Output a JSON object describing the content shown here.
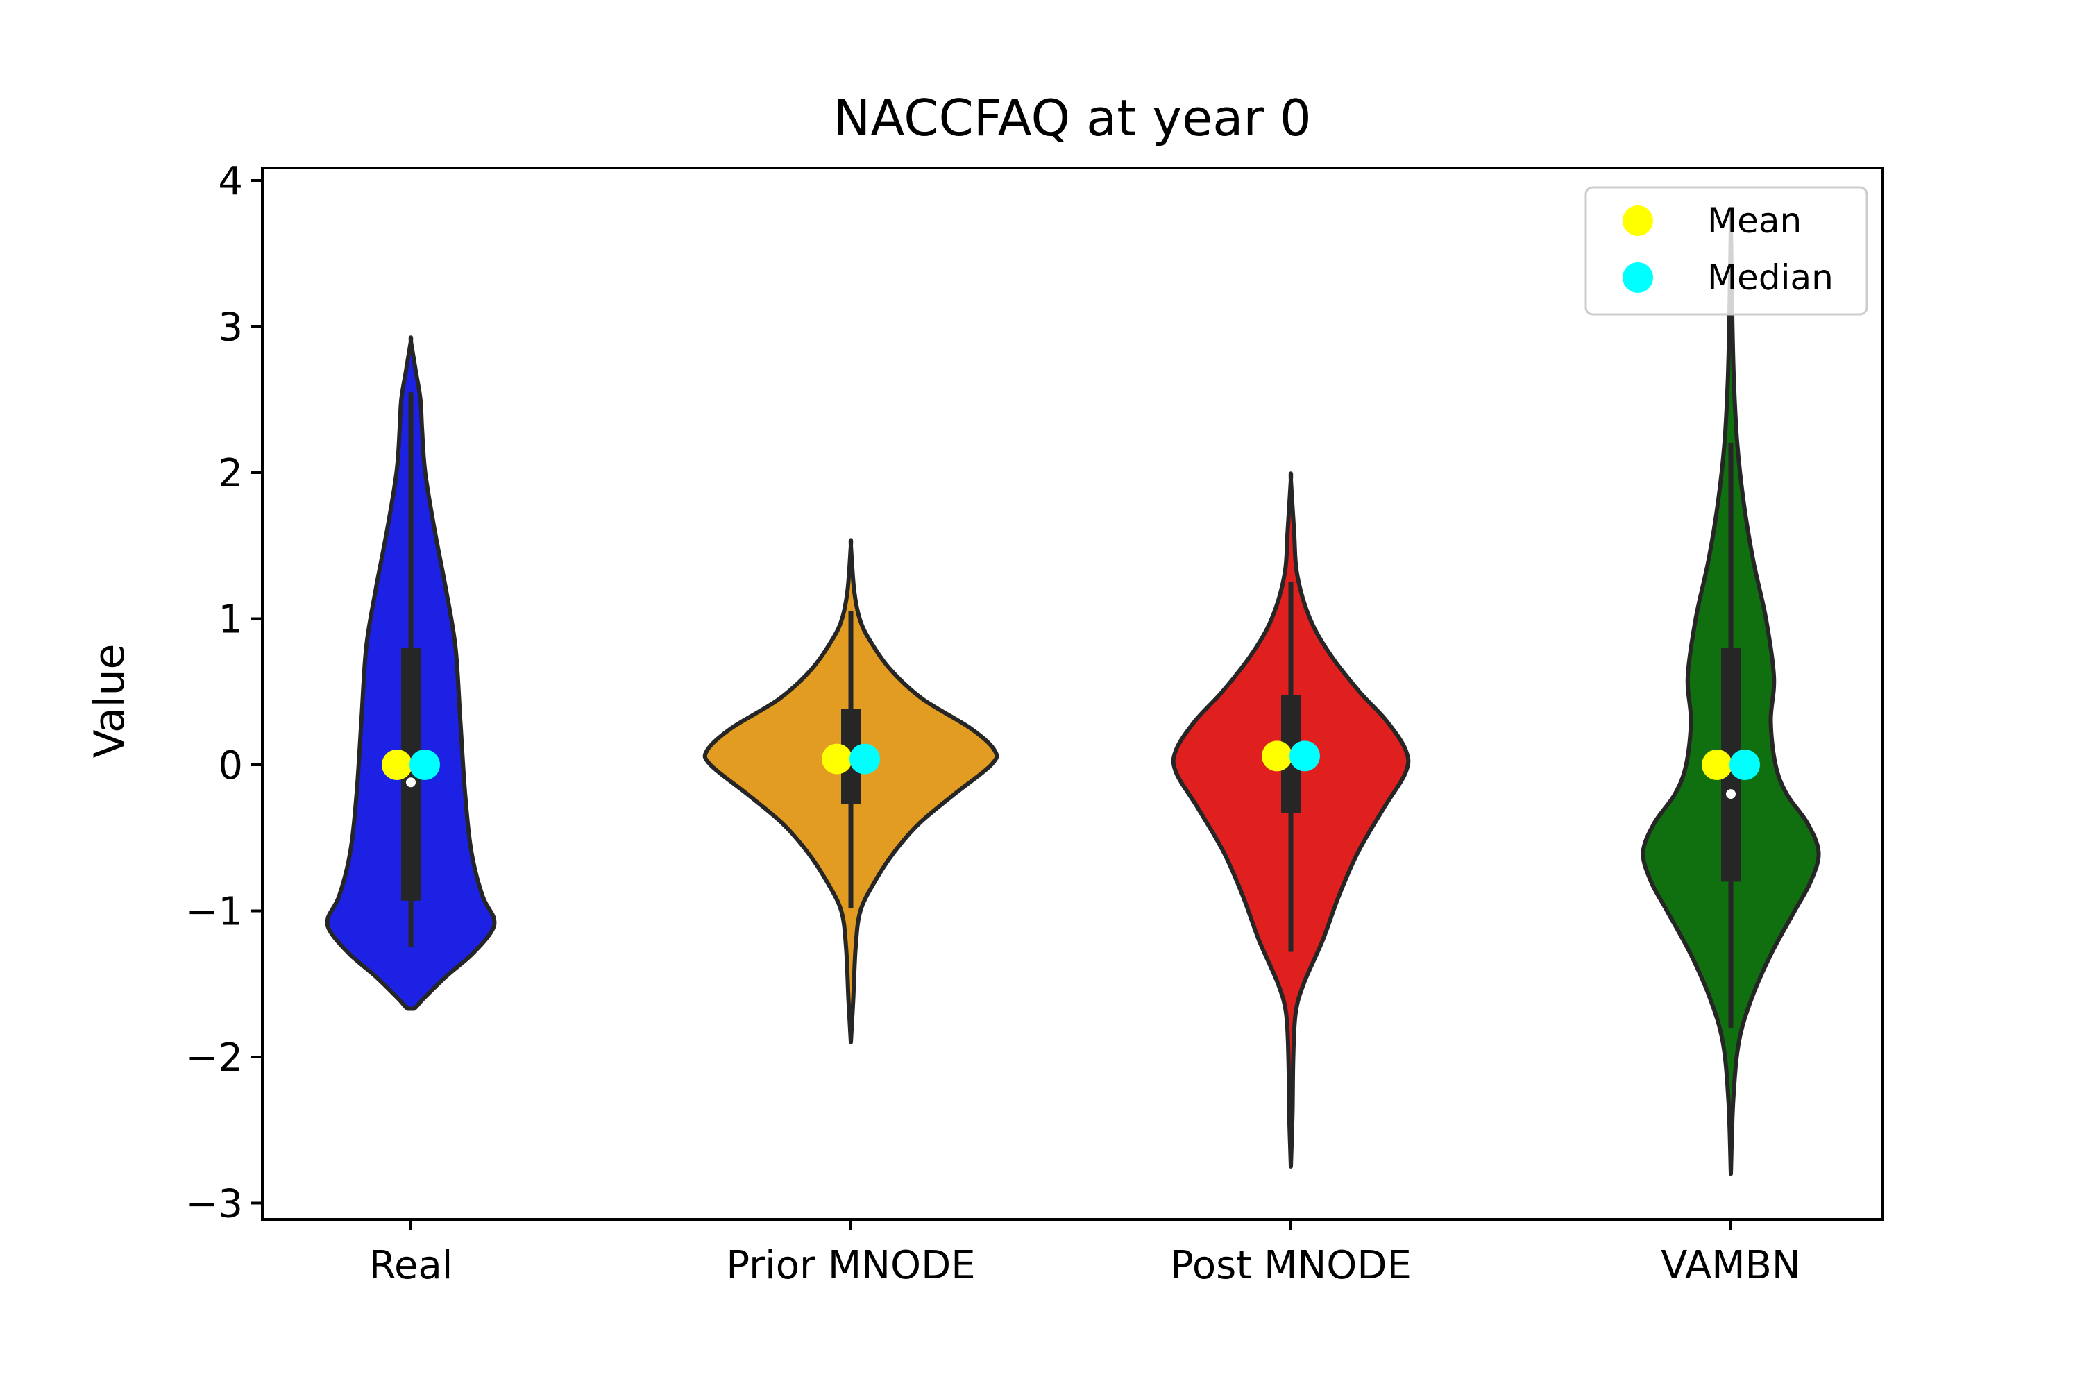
{
  "chart_data": {
    "type": "violin",
    "title": "NACCFAQ at year 0",
    "xlabel": "",
    "ylabel": "Value",
    "ylim": [
      -3.12,
      4.1
    ],
    "yticks": [
      4,
      3,
      2,
      1,
      0,
      -1,
      -2,
      -3
    ],
    "ytick_labels": [
      "4",
      "3",
      "2",
      "1",
      "0",
      "−1",
      "−2",
      "−3"
    ],
    "grid": false,
    "legend": {
      "placement": "top-right",
      "entries": [
        {
          "label": "Mean",
          "color": "#ffff00"
        },
        {
          "label": "Median",
          "color": "#00ffff"
        }
      ]
    },
    "series": [
      {
        "category": "Real",
        "color": "#1c21e3",
        "mean": 0.0,
        "median": 0.0,
        "box_median": -0.12,
        "q1": -0.93,
        "q3": 0.8,
        "whisker_low": -1.25,
        "whisker_high": 2.55,
        "profile": [
          [
            -1.67,
            0.02
          ],
          [
            -1.6,
            0.08
          ],
          [
            -1.45,
            0.22
          ],
          [
            -1.3,
            0.38
          ],
          [
            -1.15,
            0.5
          ],
          [
            -1.05,
            0.52
          ],
          [
            -0.9,
            0.45
          ],
          [
            -0.6,
            0.38
          ],
          [
            -0.2,
            0.34
          ],
          [
            0.3,
            0.31
          ],
          [
            0.8,
            0.28
          ],
          [
            1.2,
            0.22
          ],
          [
            1.6,
            0.15
          ],
          [
            2.0,
            0.09
          ],
          [
            2.3,
            0.07
          ],
          [
            2.5,
            0.06
          ],
          [
            2.7,
            0.03
          ],
          [
            2.9,
            0.0
          ]
        ]
      },
      {
        "category": "Prior MNODE",
        "color": "#e19c21",
        "mean": 0.04,
        "median": 0.04,
        "box_median": 0.04,
        "q1": -0.27,
        "q3": 0.38,
        "whisker_low": -0.98,
        "whisker_high": 1.05,
        "profile": [
          [
            -1.9,
            0.0
          ],
          [
            -1.6,
            0.015
          ],
          [
            -1.25,
            0.03
          ],
          [
            -1.0,
            0.06
          ],
          [
            -0.8,
            0.15
          ],
          [
            -0.6,
            0.27
          ],
          [
            -0.4,
            0.43
          ],
          [
            -0.2,
            0.65
          ],
          [
            0.0,
            0.88
          ],
          [
            0.1,
            0.9
          ],
          [
            0.25,
            0.75
          ],
          [
            0.45,
            0.45
          ],
          [
            0.65,
            0.25
          ],
          [
            0.85,
            0.12
          ],
          [
            1.0,
            0.055
          ],
          [
            1.2,
            0.02
          ],
          [
            1.5,
            0.0
          ]
        ]
      },
      {
        "category": "Post MNODE",
        "color": "#e01f1f",
        "mean": 0.06,
        "median": 0.06,
        "box_median": 0.06,
        "q1": -0.33,
        "q3": 0.48,
        "whisker_low": -1.28,
        "whisker_high": 1.25,
        "profile": [
          [
            -2.75,
            0.0
          ],
          [
            -2.4,
            0.01
          ],
          [
            -2.0,
            0.015
          ],
          [
            -1.7,
            0.03
          ],
          [
            -1.5,
            0.08
          ],
          [
            -1.2,
            0.2
          ],
          [
            -0.9,
            0.3
          ],
          [
            -0.6,
            0.42
          ],
          [
            -0.3,
            0.58
          ],
          [
            -0.05,
            0.72
          ],
          [
            0.1,
            0.72
          ],
          [
            0.3,
            0.6
          ],
          [
            0.5,
            0.43
          ],
          [
            0.75,
            0.25
          ],
          [
            1.0,
            0.12
          ],
          [
            1.3,
            0.04
          ],
          [
            1.6,
            0.02
          ],
          [
            1.95,
            0.0
          ]
        ]
      },
      {
        "category": "VAMBN",
        "color": "#107010",
        "mean": 0.0,
        "median": 0.0,
        "box_median": -0.2,
        "q1": -0.8,
        "q3": 0.8,
        "whisker_low": -1.8,
        "whisker_high": 2.2,
        "profile": [
          [
            -2.8,
            0.0
          ],
          [
            -2.3,
            0.015
          ],
          [
            -1.9,
            0.05
          ],
          [
            -1.6,
            0.13
          ],
          [
            -1.3,
            0.25
          ],
          [
            -1.0,
            0.4
          ],
          [
            -0.8,
            0.5
          ],
          [
            -0.6,
            0.55
          ],
          [
            -0.4,
            0.48
          ],
          [
            -0.2,
            0.35
          ],
          [
            0.0,
            0.28
          ],
          [
            0.3,
            0.25
          ],
          [
            0.6,
            0.27
          ],
          [
            1.0,
            0.22
          ],
          [
            1.4,
            0.14
          ],
          [
            1.8,
            0.08
          ],
          [
            2.2,
            0.04
          ],
          [
            2.6,
            0.02
          ],
          [
            3.0,
            0.01
          ],
          [
            3.7,
            0.0
          ]
        ]
      }
    ]
  }
}
